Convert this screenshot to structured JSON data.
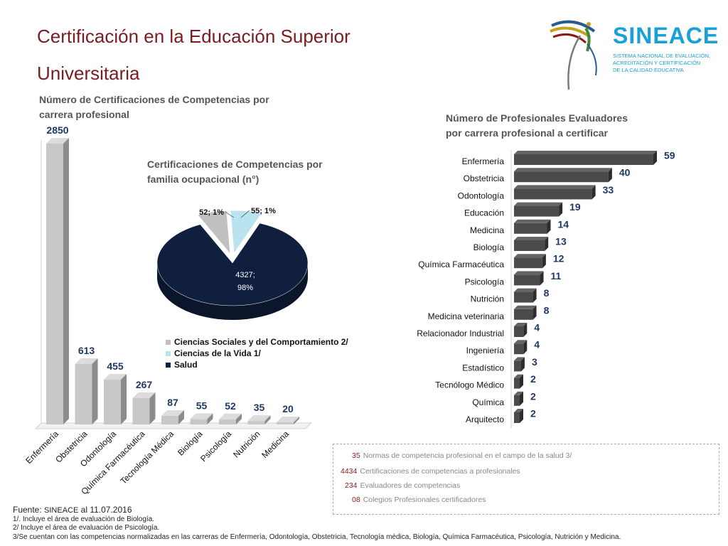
{
  "title": {
    "line1": "Certificación en la Educación Superior",
    "line2": "Universitaria"
  },
  "logo": {
    "name": "SINEACE",
    "subtitle": [
      "SISTEMA NACIONAL DE EVALUACIÓN,",
      "ACREDITACIÓN Y CERTIFICACIÓN",
      "DE LA CALIDAD EDUCATIVA"
    ]
  },
  "chart_data": [
    {
      "type": "bar",
      "title": "Número de Certificaciones de Competencias por carrera profesional",
      "title_lines": [
        "Número de Certificaciones de Competencias por",
        "carrera profesional"
      ],
      "categories": [
        "Enfermería",
        "Obstetricia",
        "Odontología",
        "Química Farmacéutica",
        "Tecnología Médica",
        "Biología",
        "Psicología",
        "Nutrición",
        "Medicina"
      ],
      "values": [
        2850,
        613,
        455,
        267,
        87,
        55,
        52,
        35,
        20
      ],
      "bar_color": "#c8c8c8",
      "label_color": "#1f3864"
    },
    {
      "type": "pie",
      "title": "Certificaciones de Competencias por familia ocupacional (n°)",
      "title_lines": [
        "Certificaciones de Competencias por",
        "familia ocupacional  (n°)"
      ],
      "slices": [
        {
          "name": "Ciencias Sociales y del Comportamiento 2/",
          "value": 52,
          "label": "52; 1%",
          "color": "#c0c0c0"
        },
        {
          "name": "Ciencias de la Vida 1/",
          "value": 55,
          "label": "55; 1%",
          "color": "#b9e3ee"
        },
        {
          "name": "Salud",
          "value": 4327,
          "label_lines": [
            "4327;",
            "98%"
          ],
          "color": "#0f1f3d"
        }
      ],
      "legend_placement": "bottom"
    },
    {
      "type": "bar",
      "orientation": "horizontal",
      "title_lines": [
        "Número de Profesionales Evaluadores",
        "por carrera profesional a certificar"
      ],
      "categories": [
        "Enfermería",
        "Obstetricia",
        "Odontología",
        "Educación",
        "Medicina",
        "Biología",
        "Química Farmacéutica",
        "Psicología",
        "Nutrición",
        "Medicina veterinaria",
        "Relacionador Industrial",
        "Ingeniería",
        "Estadístico",
        "Tecnólogo Médico",
        "Química",
        "Arquitecto"
      ],
      "values": [
        59,
        40,
        33,
        19,
        14,
        13,
        12,
        11,
        8,
        8,
        4,
        4,
        3,
        2,
        2,
        2
      ],
      "bar_color": "#4a4a4a",
      "label_color": "#1f3864"
    }
  ],
  "summary": [
    {
      "num": "35",
      "text": "Normas de competencia profesional en el campo de la salud 3/"
    },
    {
      "num": "4434",
      "text": "Certificaciones de competencias a profesionales"
    },
    {
      "num": "234",
      "text": "Evaluadores de competencias"
    },
    {
      "num": "08",
      "text": "Colegios Profesionales certificadores"
    }
  ],
  "footer": {
    "source_prefix": "Fuente: ",
    "source_org": "SINEACE",
    "source_date": " al  11.07.2016",
    "notes": [
      "1/. Incluye  el área de evaluación de Biología.",
      "2/ Incluye  el área  de evaluación de Psicología.",
      "3/Se cuentan con las competencias normalizadas en las carreras de Enfermería, Odontología, Obstetricia, Tecnología médica, Biología, Química Farmacéutica, Psicología, Nutrición y Medicina."
    ]
  }
}
